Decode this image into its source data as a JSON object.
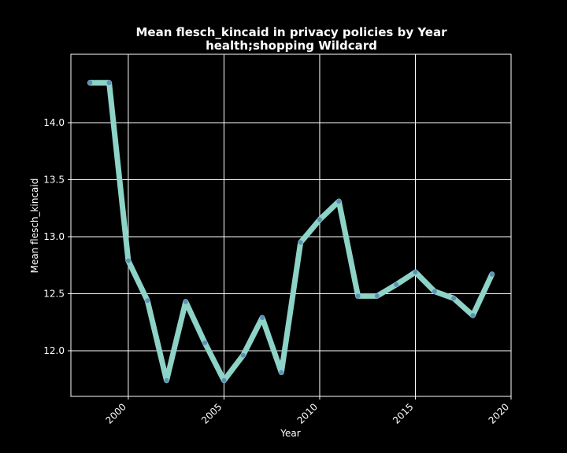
{
  "chart_data": {
    "type": "line",
    "title": "Mean flesch_kincaid in privacy policies by Year",
    "subtitle": "health;shopping Wildcard",
    "xlabel": "Year",
    "ylabel": "Mean flesch_kincaid",
    "xlim": [
      1997.0,
      2020.0
    ],
    "ylim": [
      11.6,
      14.6
    ],
    "x_ticks": [
      2000,
      2005,
      2010,
      2015,
      2020
    ],
    "y_ticks": [
      12.0,
      12.5,
      13.0,
      13.5,
      14.0
    ],
    "x_tick_labels": [
      "2000",
      "2005",
      "2010",
      "2015",
      "2020"
    ],
    "y_tick_labels": [
      "12.0",
      "12.5",
      "13.0",
      "13.5",
      "14.0"
    ],
    "grid": true,
    "colors": {
      "background": "#000000",
      "line": "#8dd3c7",
      "marker": "#4c72b0",
      "grid": "#ffffff",
      "text": "#ffffff"
    },
    "series": [
      {
        "name": "Mean flesch_kincaid",
        "x": [
          1998,
          1999,
          2000,
          2001,
          2002,
          2003,
          2004,
          2005,
          2006,
          2007,
          2008,
          2009,
          2010,
          2011,
          2012,
          2013,
          2014,
          2015,
          2016,
          2017,
          2018,
          2019
        ],
        "values": [
          14.35,
          14.35,
          12.79,
          12.44,
          11.74,
          12.43,
          12.07,
          11.74,
          11.96,
          12.29,
          11.81,
          12.95,
          13.15,
          13.31,
          12.48,
          12.48,
          12.58,
          12.69,
          12.52,
          12.46,
          12.31,
          12.67
        ]
      }
    ]
  }
}
